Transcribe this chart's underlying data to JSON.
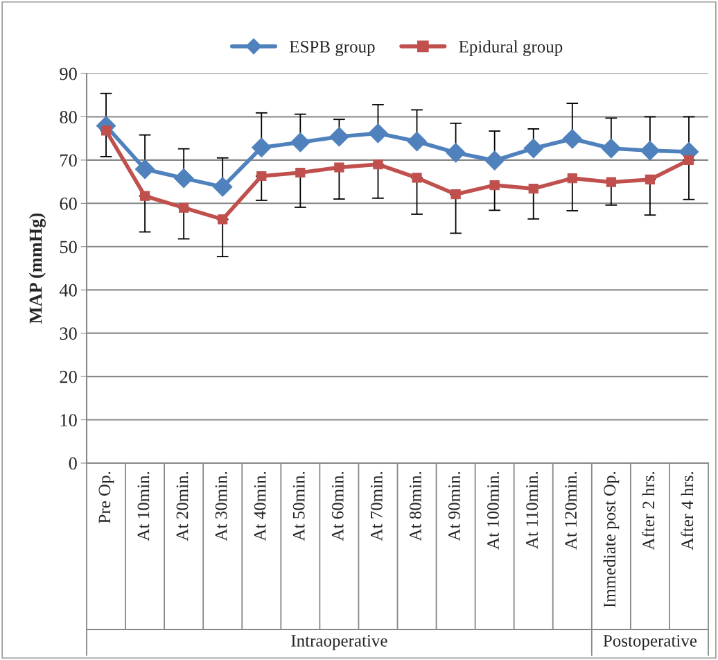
{
  "chart_data": {
    "type": "line",
    "ylabel": "MAP (mmHg)",
    "categories": [
      "Pre Op.",
      "At 10min.",
      "At 20min.",
      "At 30min.",
      "At 40min.",
      "At 50min.",
      "At 60min.",
      "At 70min.",
      "At 80min.",
      "At 90min.",
      "At 100min.",
      "At 110min.",
      "At 120min.",
      "Immediate post Op.",
      "After 2 hrs.",
      "After 4 hrs."
    ],
    "series": [
      {
        "name": "ESPB group",
        "color": "#4f81bd",
        "marker": "diamond",
        "values": [
          77.9,
          67.9,
          65.8,
          63.8,
          72.9,
          74.1,
          75.4,
          76.2,
          74.3,
          71.7,
          69.9,
          72.7,
          74.9,
          72.7,
          72.2,
          71.9
        ],
        "errors": [
          [
            77.9,
            85.4
          ],
          [
            67.9,
            75.8
          ],
          [
            65.8,
            72.6
          ],
          [
            63.8,
            70.5
          ],
          [
            72.9,
            80.9
          ],
          [
            74.1,
            80.6
          ],
          [
            75.4,
            79.4
          ],
          [
            76.2,
            82.8
          ],
          [
            74.3,
            81.6
          ],
          [
            71.7,
            78.5
          ],
          [
            69.9,
            76.7
          ],
          [
            72.7,
            77.2
          ],
          [
            74.9,
            83.1
          ],
          [
            72.7,
            79.7
          ],
          [
            72.2,
            80.0
          ],
          [
            71.9,
            80.0
          ]
        ]
      },
      {
        "name": "Epidural group",
        "color": "#c0504d",
        "marker": "square",
        "values": [
          76.8,
          61.7,
          59.0,
          56.3,
          66.3,
          67.1,
          68.3,
          69.0,
          65.9,
          62.1,
          64.2,
          63.4,
          65.8,
          64.9,
          65.5,
          70.0
        ],
        "errors": [
          [
            70.8,
            76.8
          ],
          [
            53.4,
            61.7
          ],
          [
            51.8,
            59.0
          ],
          [
            47.7,
            56.3
          ],
          [
            60.7,
            66.3
          ],
          [
            59.1,
            67.1
          ],
          [
            61.0,
            68.3
          ],
          [
            61.2,
            69.0
          ],
          [
            57.5,
            65.9
          ],
          [
            53.1,
            62.1
          ],
          [
            58.4,
            64.2
          ],
          [
            56.4,
            63.4
          ],
          [
            58.3,
            65.8
          ],
          [
            59.6,
            64.9
          ],
          [
            57.3,
            65.5
          ],
          [
            60.9,
            70.0
          ]
        ]
      }
    ],
    "ylim": [
      0,
      90
    ],
    "yticks": [
      0,
      10,
      20,
      30,
      40,
      50,
      60,
      70,
      80,
      90
    ],
    "grid": "y",
    "legend": "top",
    "annotations": [
      "Intraoperative",
      "Postoperative"
    ]
  }
}
